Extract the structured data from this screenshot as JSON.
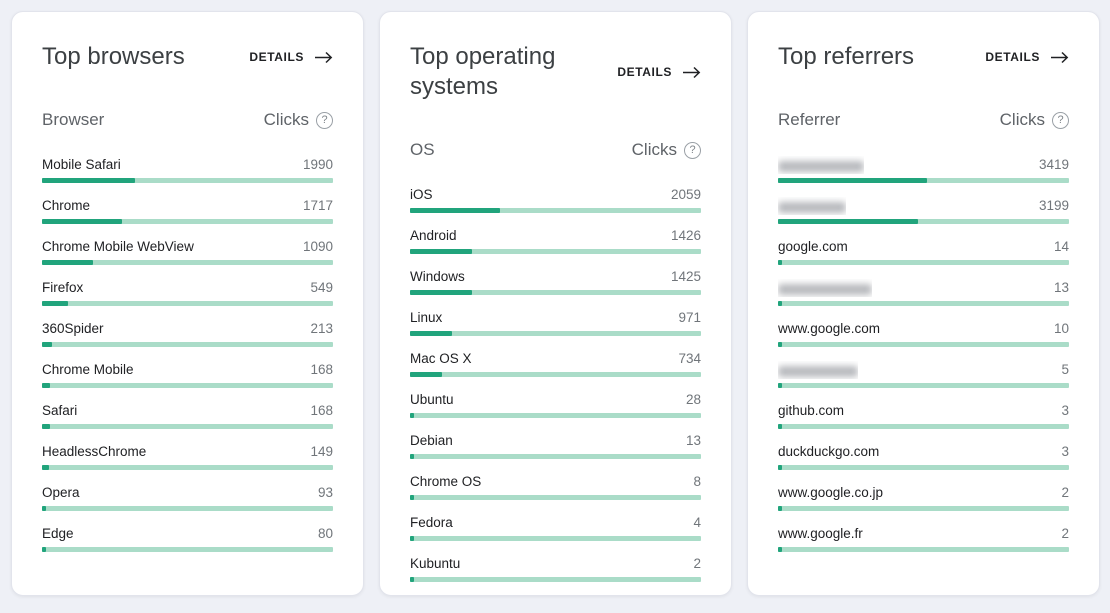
{
  "page": {
    "background": "#eef0f6"
  },
  "colors": {
    "bar_fill": "#21a47c",
    "bar_track": "#aadcc8",
    "title_text": "#3c4043",
    "header_text": "#5f6368",
    "label_text": "#202124",
    "value_text": "#70757a"
  },
  "cards": [
    {
      "title": "Top browsers",
      "details_label": "DETAILS",
      "dimension_header": "Browser",
      "metric_header": "Clicks",
      "help_icon": "question-mark-circle-icon",
      "rows": [
        {
          "label": "Mobile Safari",
          "clicks": 1990,
          "bar_pct": 32.0,
          "redacted": false
        },
        {
          "label": "Chrome",
          "clicks": 1717,
          "bar_pct": 27.6,
          "redacted": false
        },
        {
          "label": "Chrome Mobile WebView",
          "clicks": 1090,
          "bar_pct": 17.5,
          "redacted": false
        },
        {
          "label": "Firefox",
          "clicks": 549,
          "bar_pct": 8.8,
          "redacted": false
        },
        {
          "label": "360Spider",
          "clicks": 213,
          "bar_pct": 3.4,
          "redacted": false
        },
        {
          "label": "Chrome Mobile",
          "clicks": 168,
          "bar_pct": 2.7,
          "redacted": false
        },
        {
          "label": "Safari",
          "clicks": 168,
          "bar_pct": 2.7,
          "redacted": false
        },
        {
          "label": "HeadlessChrome",
          "clicks": 149,
          "bar_pct": 2.4,
          "redacted": false
        },
        {
          "label": "Opera",
          "clicks": 93,
          "bar_pct": 1.5,
          "redacted": false
        },
        {
          "label": "Edge",
          "clicks": 80,
          "bar_pct": 1.3,
          "redacted": false
        }
      ]
    },
    {
      "title": "Top operating systems",
      "details_label": "DETAILS",
      "dimension_header": "OS",
      "metric_header": "Clicks",
      "help_icon": "question-mark-circle-icon",
      "rows": [
        {
          "label": "iOS",
          "clicks": 2059,
          "bar_pct": 30.9,
          "redacted": false
        },
        {
          "label": "Android",
          "clicks": 1426,
          "bar_pct": 21.4,
          "redacted": false
        },
        {
          "label": "Windows",
          "clicks": 1425,
          "bar_pct": 21.4,
          "redacted": false
        },
        {
          "label": "Linux",
          "clicks": 971,
          "bar_pct": 14.6,
          "redacted": false
        },
        {
          "label": "Mac OS X",
          "clicks": 734,
          "bar_pct": 11.0,
          "redacted": false
        },
        {
          "label": "Ubuntu",
          "clicks": 28,
          "bar_pct": 0.4,
          "redacted": false
        },
        {
          "label": "Debian",
          "clicks": 13,
          "bar_pct": 0.2,
          "redacted": false
        },
        {
          "label": "Chrome OS",
          "clicks": 8,
          "bar_pct": 0.12,
          "redacted": false
        },
        {
          "label": "Fedora",
          "clicks": 4,
          "bar_pct": 0.06,
          "redacted": false
        },
        {
          "label": "Kubuntu",
          "clicks": 2,
          "bar_pct": 0.03,
          "redacted": false
        }
      ]
    },
    {
      "title": "Top referrers",
      "details_label": "DETAILS",
      "dimension_header": "Referrer",
      "metric_header": "Clicks",
      "help_icon": "question-mark-circle-icon",
      "rows": [
        {
          "label": "",
          "clicks": 3419,
          "bar_pct": 51.3,
          "redacted": true,
          "blur_width": 86
        },
        {
          "label": "",
          "clicks": 3199,
          "bar_pct": 48.0,
          "redacted": true,
          "blur_width": 68
        },
        {
          "label": "google.com",
          "clicks": 14,
          "bar_pct": 0.21,
          "redacted": false
        },
        {
          "label": "",
          "clicks": 13,
          "bar_pct": 0.19,
          "redacted": true,
          "blur_width": 94
        },
        {
          "label": "www.google.com",
          "clicks": 10,
          "bar_pct": 0.15,
          "redacted": false
        },
        {
          "label": "",
          "clicks": 5,
          "bar_pct": 0.08,
          "redacted": true,
          "blur_width": 80
        },
        {
          "label": "github.com",
          "clicks": 3,
          "bar_pct": 0.05,
          "redacted": false
        },
        {
          "label": "duckduckgo.com",
          "clicks": 3,
          "bar_pct": 0.05,
          "redacted": false
        },
        {
          "label": "www.google.co.jp",
          "clicks": 2,
          "bar_pct": 0.03,
          "redacted": false
        },
        {
          "label": "www.google.fr",
          "clicks": 2,
          "bar_pct": 0.03,
          "redacted": false
        }
      ]
    }
  ]
}
